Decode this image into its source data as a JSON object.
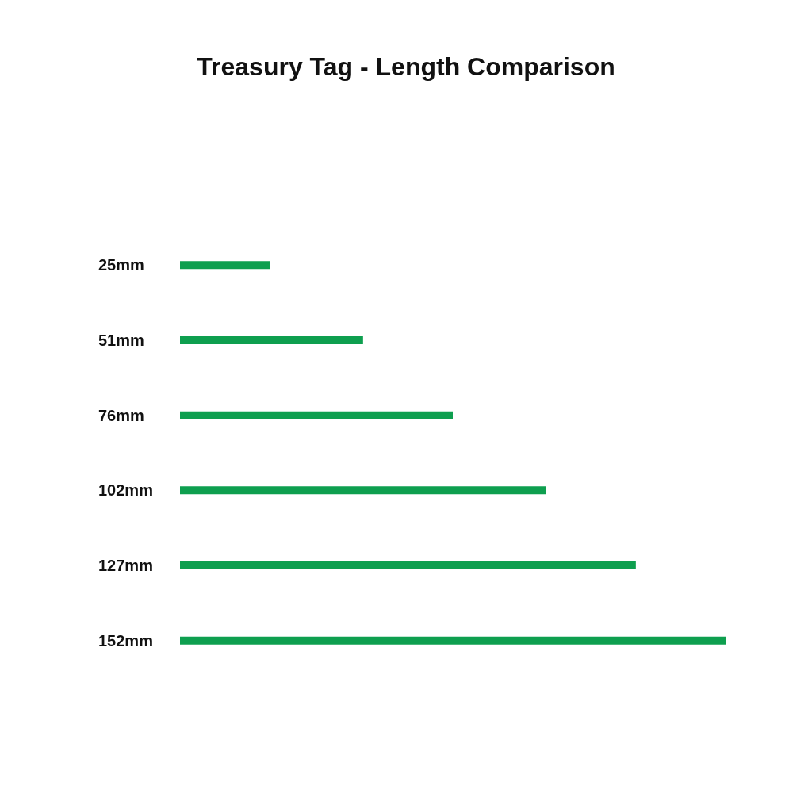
{
  "chart_data": {
    "type": "bar",
    "orientation": "horizontal",
    "title": "Treasury Tag - Length Comparison",
    "categories": [
      null,
      null,
      null,
      null,
      null,
      null
    ],
    "values": [
      25,
      51,
      76,
      102,
      127,
      152
    ],
    "value_labels": [
      "25mm",
      "51mm",
      "76mm",
      "102mm",
      "127mm",
      "152mm"
    ],
    "color": "#0e9f4f"
  }
}
